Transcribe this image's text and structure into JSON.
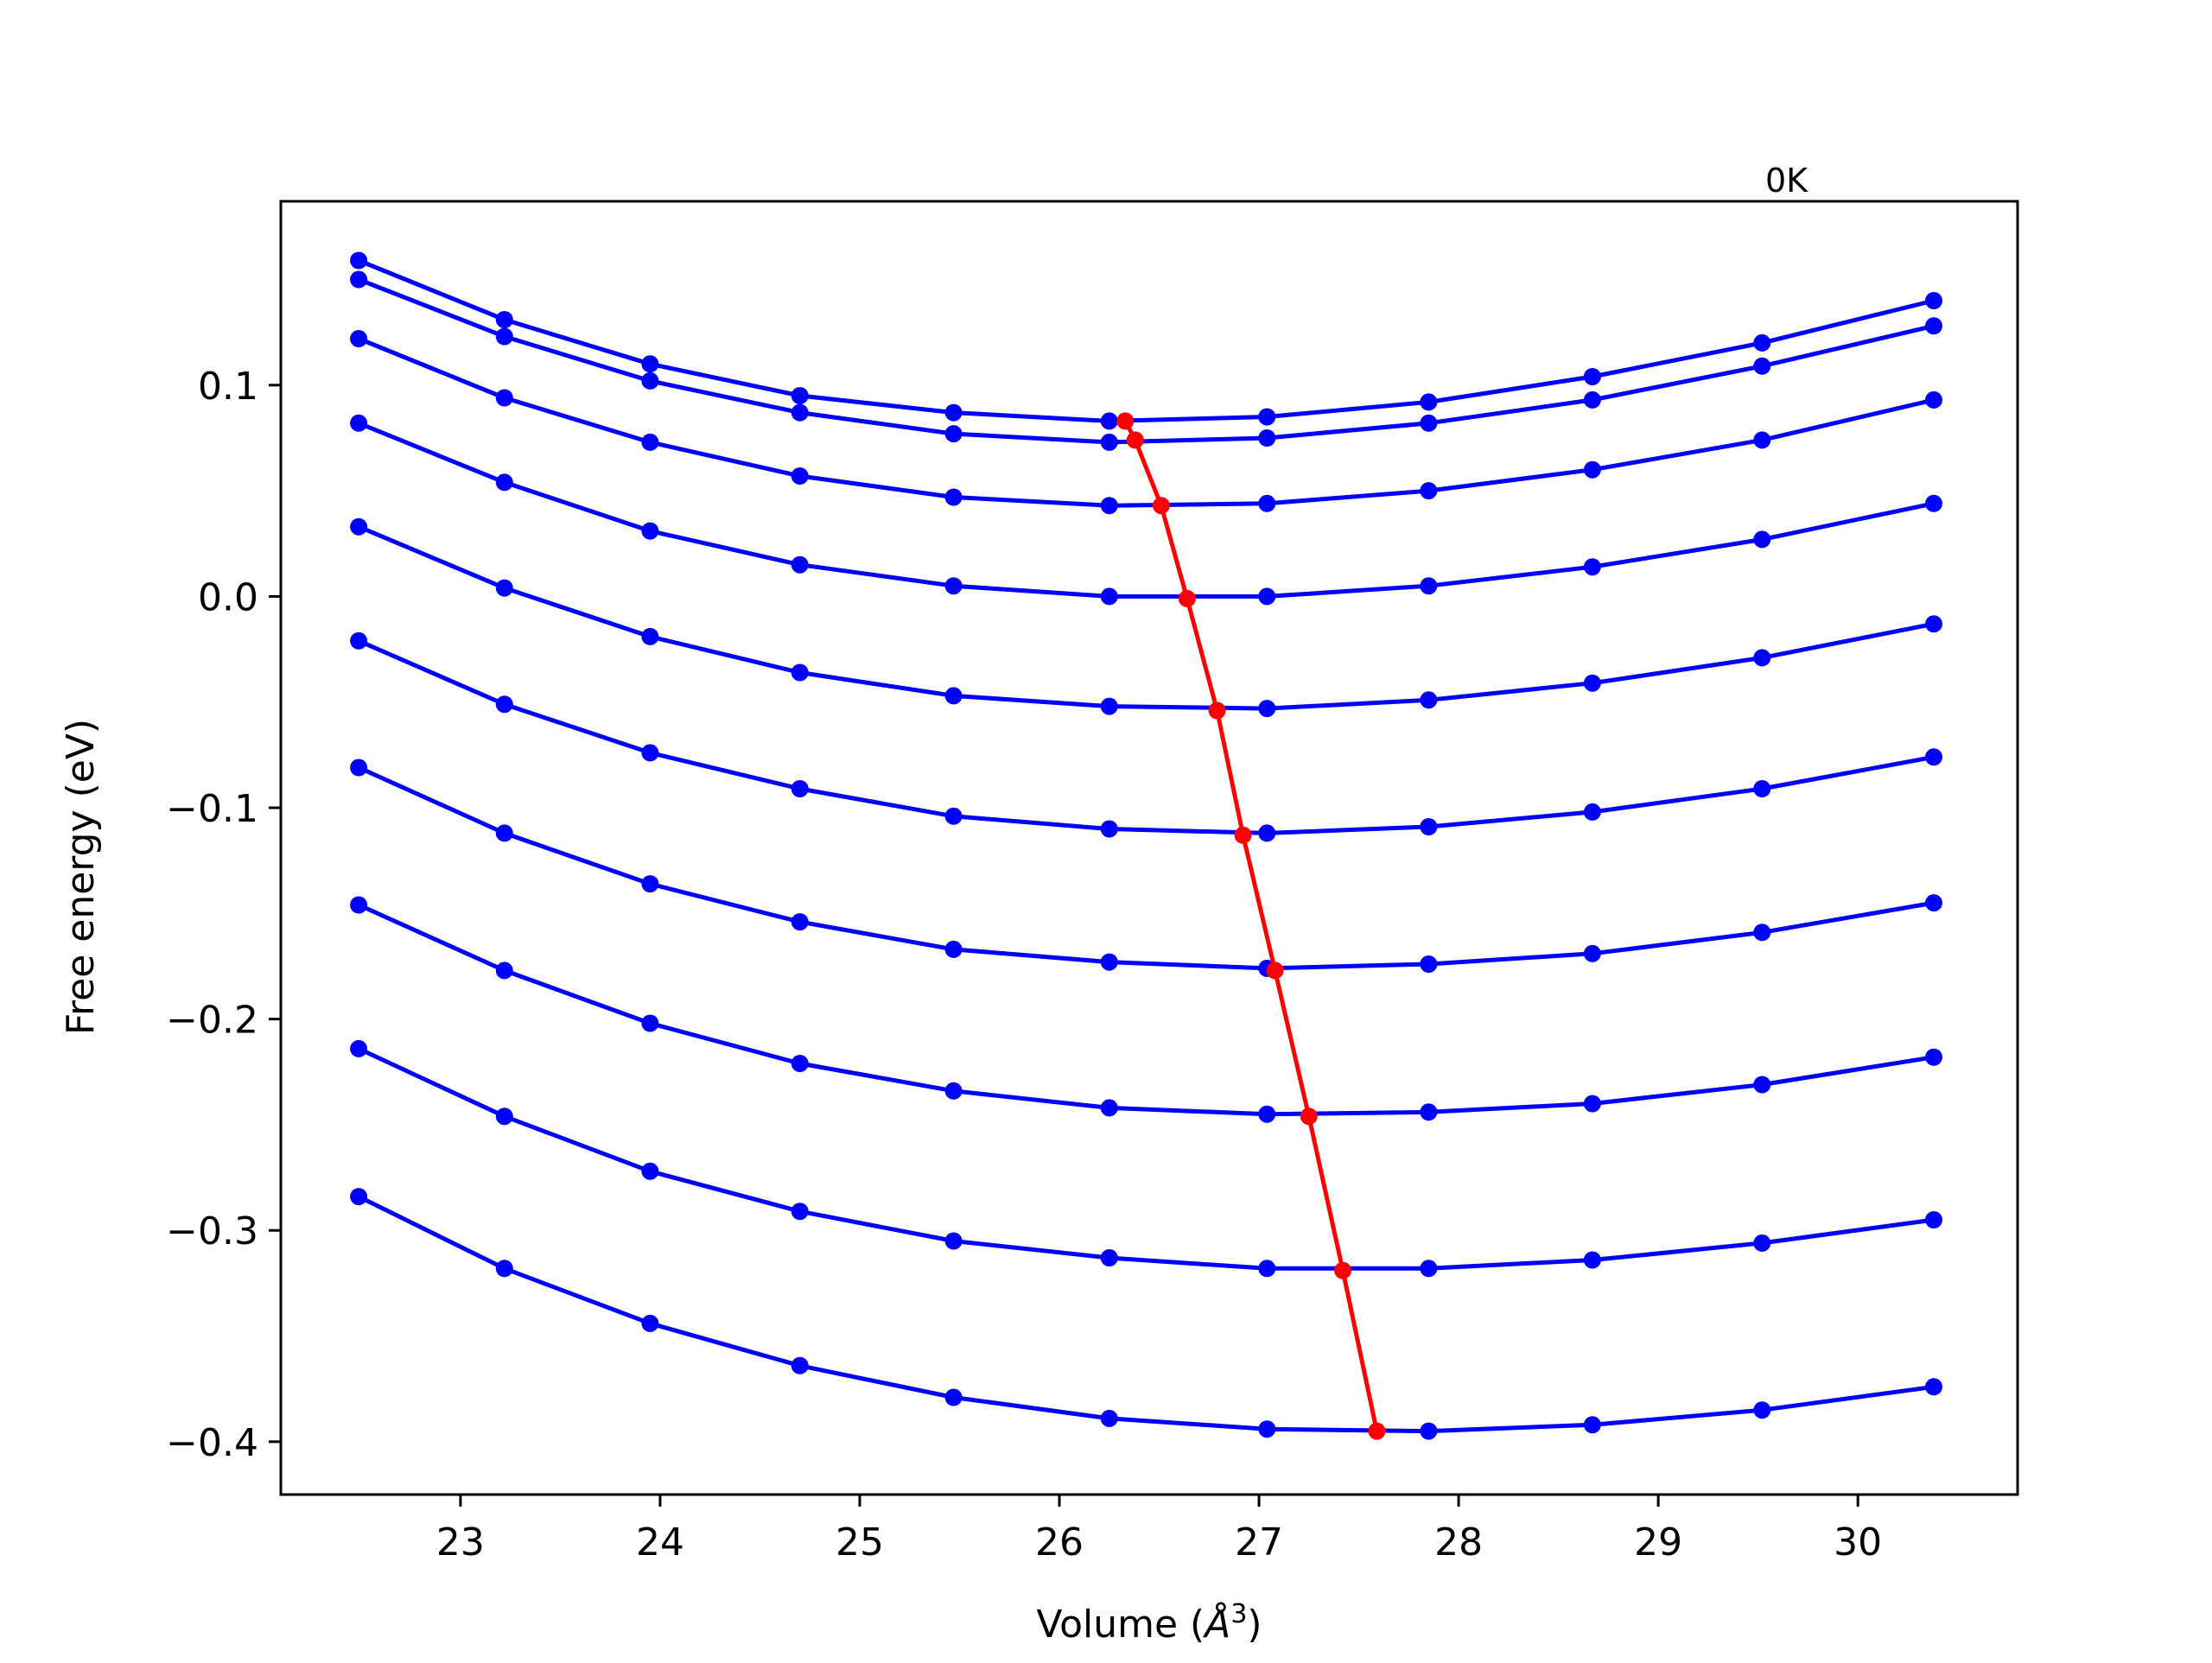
{
  "chart_data": {
    "type": "line",
    "annotation": "0K",
    "xlabel": "Volume (Å³)",
    "xlabel_parts": {
      "text": "Volume (",
      "italic": "Å",
      "sup": "3",
      "close": ")"
    },
    "ylabel": "Free energy (eV)",
    "xlim": [
      22.1,
      30.8
    ],
    "ylim": [
      -0.425,
      0.187
    ],
    "xticks": [
      23,
      24,
      25,
      26,
      27,
      28,
      29,
      30
    ],
    "xtick_labels": [
      "23",
      "24",
      "25",
      "26",
      "27",
      "28",
      "29",
      "30"
    ],
    "yticks": [
      0.1,
      0.0,
      -0.1,
      -0.2,
      -0.3,
      -0.4
    ],
    "ytick_labels": [
      "0.1",
      "0.0",
      "−0.1",
      "−0.2",
      "−0.3",
      "−0.4"
    ],
    "grid": false,
    "legend": "none",
    "colors": {
      "curves": "#0000ff",
      "minima": "#ff0000",
      "axes": "#000000"
    },
    "x": [
      22.49,
      23.22,
      23.95,
      24.7,
      25.47,
      26.25,
      27.04,
      27.85,
      28.67,
      29.52,
      30.38
    ],
    "series": [
      {
        "values": [
          0.159,
          0.131,
          0.11,
          0.095,
          0.087,
          0.083,
          0.085,
          0.092,
          0.104,
          0.12,
          0.14
        ],
        "min": [
          26.33,
          0.083
        ]
      },
      {
        "values": [
          0.15,
          0.123,
          0.102,
          0.087,
          0.077,
          0.073,
          0.075,
          0.082,
          0.093,
          0.109,
          0.128
        ],
        "min": [
          26.38,
          0.074
        ]
      },
      {
        "values": [
          0.122,
          0.094,
          0.073,
          0.057,
          0.047,
          0.043,
          0.044,
          0.05,
          0.06,
          0.074,
          0.093
        ],
        "min": [
          26.51,
          0.043
        ]
      },
      {
        "values": [
          0.082,
          0.054,
          0.031,
          0.015,
          0.005,
          0.0,
          0.0,
          0.005,
          0.014,
          0.027,
          0.044
        ],
        "min": [
          26.64,
          -0.001
        ]
      },
      {
        "values": [
          -0.021,
          -0.051,
          -0.074,
          -0.091,
          -0.104,
          -0.11,
          -0.112,
          -0.109,
          -0.102,
          -0.091,
          -0.076
        ],
        "min": [
          26.92,
          -0.113
        ]
      },
      {
        "values": [
          0.033,
          0.004,
          -0.019,
          -0.036,
          -0.047,
          -0.052,
          -0.053,
          -0.049,
          -0.041,
          -0.029,
          -0.013
        ],
        "min": [
          26.79,
          -0.054
        ]
      },
      {
        "values": [
          -0.081,
          -0.112,
          -0.136,
          -0.154,
          -0.167,
          -0.173,
          -0.176,
          -0.174,
          -0.169,
          -0.159,
          -0.145
        ],
        "min": [
          27.08,
          -0.177
        ]
      },
      {
        "values": [
          -0.146,
          -0.177,
          -0.202,
          -0.221,
          -0.234,
          -0.242,
          -0.245,
          -0.244,
          -0.24,
          -0.231,
          -0.218
        ],
        "min": [
          27.25,
          -0.246
        ]
      },
      {
        "values": [
          -0.214,
          -0.246,
          -0.272,
          -0.291,
          -0.305,
          -0.313,
          -0.318,
          -0.318,
          -0.314,
          -0.306,
          -0.295
        ],
        "min": [
          27.42,
          -0.319
        ]
      },
      {
        "values": [
          -0.284,
          -0.318,
          -0.344,
          -0.364,
          -0.379,
          -0.389,
          -0.394,
          -0.395,
          -0.392,
          -0.385,
          -0.374
        ],
        "min": [
          27.59,
          -0.395
        ]
      }
    ]
  }
}
